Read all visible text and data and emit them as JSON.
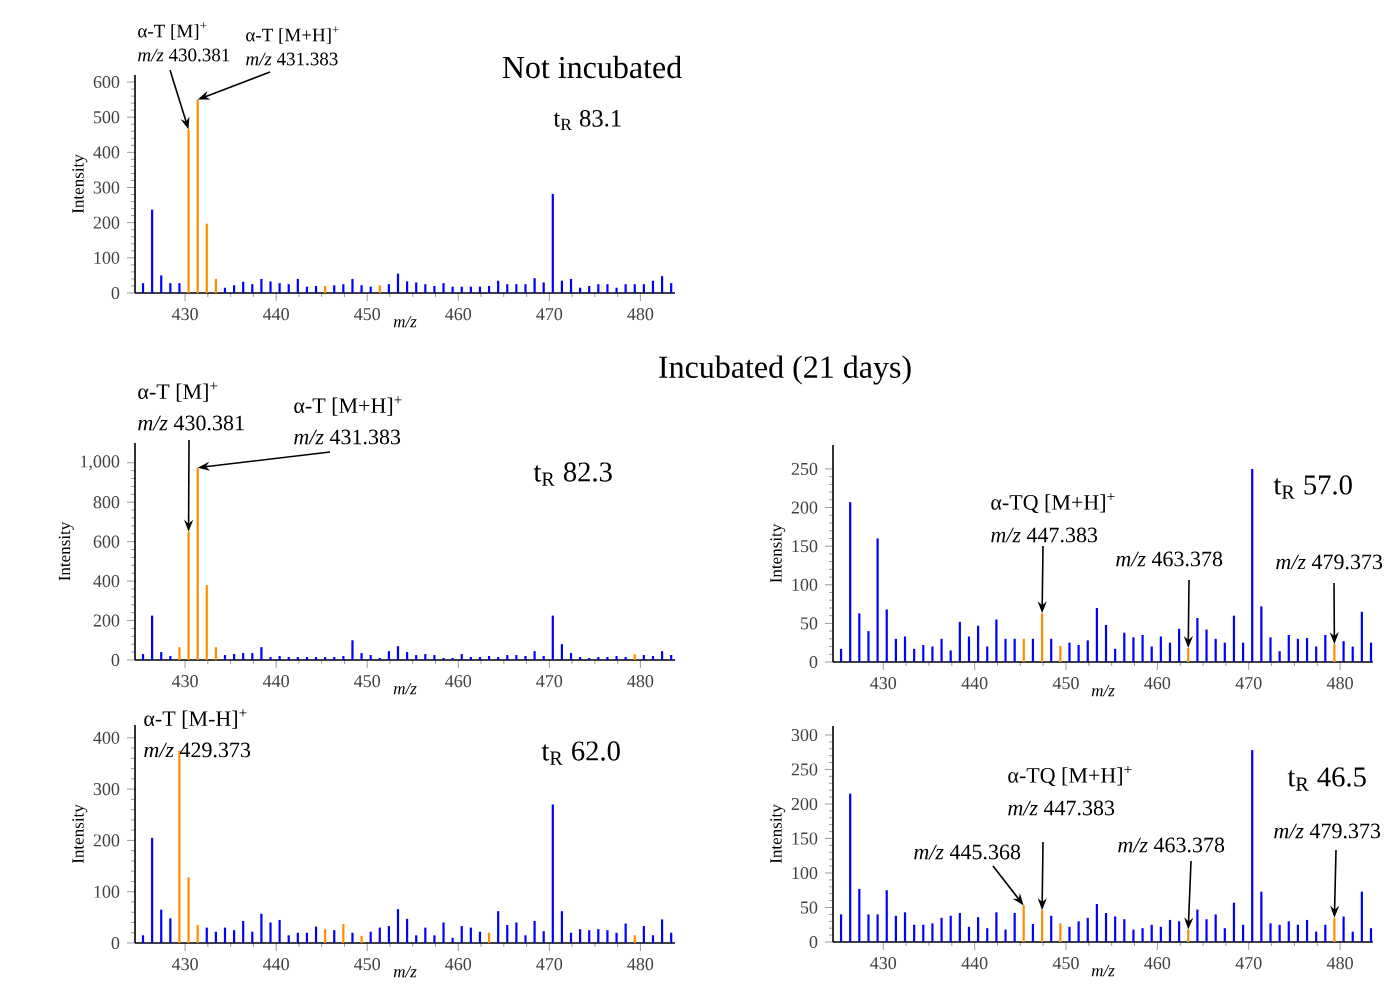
{
  "chart_data": [
    {
      "type": "bar",
      "title": "Not incubated",
      "xlabel": "m/z",
      "ylabel": "Intensity",
      "xlim": [
        424.5,
        483.8
      ],
      "ylim": [
        0,
        620
      ],
      "xticks": [
        430,
        440,
        450,
        460,
        470,
        480
      ],
      "yticks": [
        0,
        100,
        200,
        300,
        400,
        500,
        600
      ],
      "series": [
        {
          "color": "#0000ff",
          "x": [
            425.38,
            426.38,
            427.38,
            428.38,
            429.38,
            434.38,
            435.38,
            436.38,
            437.38,
            438.38,
            439.38,
            440.38,
            441.38,
            442.38,
            443.38,
            444.38,
            446.38,
            447.38,
            448.38,
            449.38,
            450.38,
            452.38,
            453.38,
            454.38,
            455.38,
            456.38,
            457.38,
            458.38,
            459.38,
            460.38,
            461.38,
            462.38,
            463.38,
            464.38,
            465.38,
            466.38,
            467.38,
            468.38,
            469.38,
            470.38,
            471.38,
            472.38,
            473.38,
            474.38,
            475.38,
            476.38,
            477.38,
            478.38,
            479.38,
            480.38,
            481.38,
            482.38,
            483.38
          ],
          "values": [
            28,
            237,
            50,
            28,
            28,
            15,
            22,
            32,
            25,
            40,
            33,
            28,
            25,
            40,
            18,
            20,
            22,
            25,
            40,
            22,
            18,
            25,
            55,
            33,
            30,
            25,
            20,
            28,
            18,
            18,
            18,
            18,
            20,
            35,
            25,
            25,
            25,
            42,
            30,
            282,
            35,
            40,
            15,
            20,
            25,
            25,
            15,
            25,
            25,
            25,
            35,
            48,
            28
          ]
        },
        {
          "color": "#ff8c00",
          "x": [
            430.381,
            431.383,
            432.38,
            433.38,
            445.38,
            451.38
          ],
          "values": [
            465,
            550,
            197,
            40,
            20,
            22
          ]
        }
      ],
      "annotations": [
        "α-T [M]$^{+}$",
        {
          "text": "*m/z* 430.381",
          "x": 430.381,
          "y": 465
        },
        "α-T [M+H]$^{+}$",
        {
          "text": "*m/z* 431.383",
          "x": 431.383,
          "y": 550
        },
        "t$_{R}$ 83.1"
      ]
    },
    {
      "type": "bar",
      "title": "Incubated (21 days)",
      "xlabel": "m/z",
      "ylabel": "Intensity",
      "xlim": [
        424.5,
        483.8
      ],
      "ylim": [
        0,
        1100
      ],
      "xticks": [
        430,
        440,
        450,
        460,
        470,
        480
      ],
      "yticks": [
        0,
        200,
        400,
        600,
        800,
        {
          "value": 1000,
          "label": "1,000"
        }
      ],
      "series": [
        {
          "color": "#0000ff",
          "x": [
            425.38,
            426.38,
            427.38,
            428.38,
            434.38,
            435.38,
            436.38,
            437.38,
            438.38,
            439.38,
            440.38,
            441.38,
            442.38,
            443.38,
            444.38,
            445.38,
            446.38,
            447.38,
            448.38,
            449.38,
            450.38,
            451.38,
            452.38,
            453.38,
            454.38,
            455.38,
            456.38,
            457.38,
            458.38,
            459.38,
            460.38,
            461.38,
            462.38,
            463.38,
            464.38,
            465.38,
            466.38,
            467.38,
            468.38,
            469.38,
            470.38,
            471.38,
            472.38,
            473.38,
            474.38,
            475.38,
            476.38,
            477.38,
            478.38,
            480.38,
            481.38,
            482.38,
            483.38
          ],
          "values": [
            30,
            225,
            40,
            20,
            25,
            30,
            35,
            35,
            65,
            15,
            20,
            15,
            15,
            15,
            15,
            15,
            15,
            20,
            100,
            35,
            25,
            10,
            45,
            70,
            40,
            25,
            30,
            25,
            10,
            10,
            30,
            15,
            15,
            20,
            15,
            25,
            25,
            20,
            45,
            20,
            225,
            80,
            35,
            15,
            10,
            15,
            15,
            20,
            15,
            25,
            20,
            45,
            25
          ]
        },
        {
          "color": "#ff8c00",
          "x": [
            429.38,
            430.381,
            431.383,
            432.38,
            433.38,
            479.38
          ],
          "values": [
            65,
            650,
            975,
            380,
            65,
            30
          ]
        }
      ],
      "annotations": [
        "α-T [M]$^{+}$",
        {
          "text": "*m/z* 430.381",
          "x": 430.381,
          "y": 650
        },
        "α-T [M+H]$^{+}$",
        {
          "text": "*m/z* 431.383",
          "x": 431.383,
          "y": 975
        },
        "t$_{R}$ 82.3"
      ]
    },
    {
      "type": "bar",
      "xlabel": "m/z",
      "ylabel": "Intensity",
      "xlim": [
        424.5,
        483.8
      ],
      "ylim": [
        0,
        425
      ],
      "xticks": [
        430,
        440,
        450,
        460,
        470,
        480
      ],
      "yticks": [
        0,
        100,
        200,
        300,
        400
      ],
      "series": [
        {
          "color": "#0000ff",
          "x": [
            425.38,
            426.38,
            427.38,
            428.38,
            432.38,
            433.38,
            434.38,
            435.38,
            436.38,
            437.38,
            438.38,
            439.38,
            440.38,
            441.38,
            442.38,
            443.38,
            444.38,
            446.38,
            448.38,
            450.38,
            451.38,
            452.38,
            453.38,
            454.38,
            455.38,
            456.38,
            457.38,
            458.38,
            459.38,
            460.38,
            461.38,
            462.38,
            464.38,
            465.38,
            466.38,
            467.38,
            468.38,
            469.38,
            470.38,
            471.38,
            472.38,
            473.38,
            474.38,
            475.38,
            476.38,
            477.38,
            478.38,
            480.38,
            481.38,
            482.38,
            483.38
          ],
          "values": [
            15,
            205,
            65,
            48,
            30,
            22,
            30,
            25,
            43,
            22,
            57,
            40,
            45,
            15,
            20,
            20,
            32,
            25,
            20,
            22,
            30,
            33,
            66,
            47,
            15,
            30,
            15,
            40,
            10,
            33,
            30,
            22,
            62,
            35,
            40,
            15,
            43,
            23,
            270,
            62,
            20,
            27,
            25,
            27,
            25,
            20,
            38,
            33,
            15,
            46,
            20
          ]
        },
        {
          "color": "#ff8c00",
          "x": [
            429.373,
            430.38,
            431.38,
            445.38,
            447.38,
            449.38,
            463.38,
            479.38
          ],
          "values": [
            375,
            128,
            35,
            27,
            37,
            14,
            20,
            15
          ]
        }
      ],
      "annotations": [
        "α-T [M-H]$^{+}$",
        {
          "text": "*m/z* 429.373",
          "x": 429.373,
          "y": 375
        },
        "t$_{R}$ 62.0"
      ]
    },
    {
      "type": "bar",
      "xlabel": "m/z",
      "ylabel": "Intensity",
      "xlim": [
        424.5,
        483.6
      ],
      "ylim": [
        0,
        281
      ],
      "xticks": [
        430,
        440,
        450,
        460,
        470,
        480
      ],
      "yticks": [
        0,
        50,
        100,
        150,
        200,
        250
      ],
      "series": [
        {
          "color": "#0000ff",
          "x": [
            425.38,
            426.38,
            427.38,
            428.38,
            429.38,
            430.38,
            431.38,
            432.38,
            433.38,
            434.38,
            435.38,
            436.38,
            437.38,
            438.38,
            439.38,
            440.38,
            441.38,
            442.38,
            443.38,
            444.38,
            446.38,
            448.38,
            450.38,
            451.38,
            452.38,
            453.38,
            454.38,
            455.38,
            456.38,
            457.38,
            458.38,
            459.38,
            460.38,
            461.38,
            462.38,
            464.38,
            465.38,
            466.38,
            467.38,
            468.38,
            469.38,
            470.38,
            471.38,
            472.38,
            473.38,
            474.38,
            475.38,
            476.38,
            477.38,
            478.38,
            480.38,
            481.38,
            482.38,
            483.38
          ],
          "values": [
            17,
            207,
            63,
            40,
            160,
            68,
            30,
            33,
            17,
            22,
            20,
            30,
            15,
            52,
            33,
            47,
            20,
            55,
            30,
            30,
            30,
            30,
            25,
            22,
            28,
            70,
            48,
            17,
            38,
            32,
            35,
            20,
            33,
            25,
            43,
            57,
            42,
            30,
            25,
            60,
            25,
            250,
            72,
            32,
            14,
            35,
            30,
            31,
            20,
            35,
            27,
            20,
            65,
            25
          ]
        },
        {
          "color": "#ff8c00",
          "x": [
            445.38,
            447.383,
            449.38,
            463.378,
            479.373
          ],
          "values": [
            30,
            63,
            21,
            18,
            23
          ]
        }
      ],
      "annotations": [
        "α-TQ [M+H]$^{+}$",
        {
          "text": "*m/z* 447.383",
          "x": 447.383,
          "y": 63
        },
        {
          "text": "*m/z* 463.378",
          "x": 463.378,
          "y": 18
        },
        {
          "text": "*m/z* 479.373",
          "x": 479.373,
          "y": 23
        },
        "t$_{R}$ 57.0"
      ]
    },
    {
      "type": "bar",
      "xlabel": "m/z",
      "ylabel": "Intensity",
      "xlim": [
        424.5,
        483.6
      ],
      "ylim": [
        0,
        313
      ],
      "xticks": [
        430,
        440,
        450,
        460,
        470,
        480
      ],
      "yticks": [
        0,
        50,
        100,
        150,
        200,
        250,
        300
      ],
      "series": [
        {
          "color": "#0000ff",
          "x": [
            425.38,
            426.38,
            427.38,
            428.38,
            429.38,
            430.38,
            431.38,
            432.38,
            433.38,
            434.38,
            435.38,
            436.38,
            437.38,
            438.38,
            439.38,
            440.38,
            441.38,
            442.38,
            443.38,
            444.38,
            446.38,
            448.38,
            450.38,
            451.38,
            452.38,
            453.38,
            454.38,
            455.38,
            456.38,
            457.38,
            458.38,
            459.38,
            460.38,
            461.38,
            462.38,
            464.38,
            465.38,
            466.38,
            467.38,
            468.38,
            469.38,
            470.38,
            471.38,
            472.38,
            473.38,
            474.38,
            475.38,
            476.38,
            477.38,
            478.38,
            480.38,
            481.38,
            482.38,
            483.38
          ],
          "values": [
            40,
            215,
            77,
            40,
            40,
            75,
            38,
            43,
            25,
            25,
            27,
            35,
            38,
            42,
            22,
            36,
            20,
            43,
            18,
            42,
            26,
            38,
            22,
            30,
            35,
            55,
            42,
            37,
            33,
            18,
            20,
            25,
            22,
            32,
            30,
            47,
            33,
            40,
            20,
            57,
            25,
            278,
            73,
            27,
            25,
            30,
            25,
            32,
            15,
            25,
            37,
            15,
            73,
            20
          ]
        },
        {
          "color": "#ff8c00",
          "x": [
            445.368,
            447.383,
            449.38,
            463.378,
            479.373
          ],
          "values": [
            53,
            46,
            27,
            18,
            35
          ]
        }
      ],
      "annotations": [
        "α-TQ [M+H]$^{+}$",
        {
          "text": "*m/z* 447.383",
          "x": 447.383,
          "y": 46
        },
        {
          "text": "*m/z* 445.368",
          "x": 445.368,
          "y": 53
        },
        {
          "text": "*m/z* 463.378",
          "x": 463.378,
          "y": 18
        },
        {
          "text": "*m/z* 479.373",
          "x": 479.373,
          "y": 35
        },
        "t$_{R}$ 46.5"
      ]
    }
  ]
}
